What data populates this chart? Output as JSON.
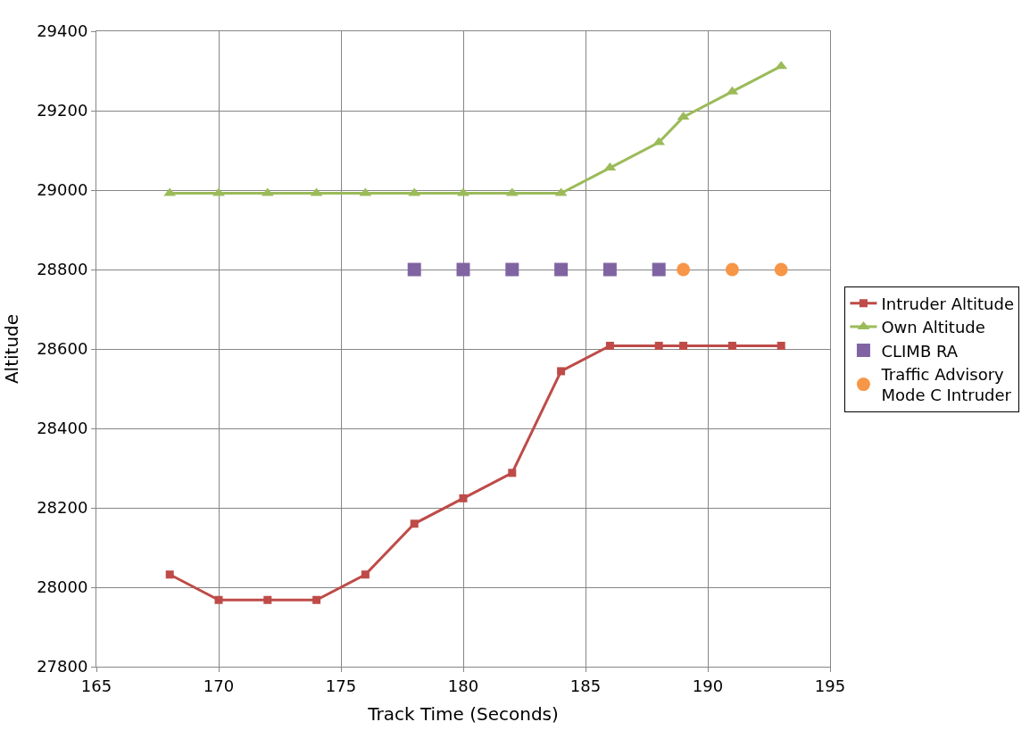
{
  "chart_data": {
    "type": "line",
    "xlabel": "Track Time (Seconds)",
    "ylabel": "Altitude",
    "xlim": [
      165,
      195
    ],
    "xticks": [
      165,
      170,
      175,
      180,
      185,
      190,
      195
    ],
    "ylim": [
      27800,
      29400
    ],
    "yticks": [
      27800,
      28000,
      28200,
      28400,
      28600,
      28800,
      29000,
      29200,
      29400
    ],
    "grid": true,
    "legend": "right",
    "series": [
      {
        "name": "Intruder Altitude",
        "marker": "square",
        "color": "#be4b48",
        "x": [
          168,
          170,
          172,
          174,
          176,
          178,
          180,
          182,
          184,
          186,
          188,
          189,
          191,
          193
        ],
        "values": [
          28032,
          27968,
          27968,
          27968,
          28032,
          28160,
          28224,
          28288,
          28544,
          28608,
          28608,
          28608,
          28608,
          28608
        ]
      },
      {
        "name": "Own Altitude",
        "marker": "triangle",
        "color": "#9bbb59",
        "x": [
          168,
          170,
          172,
          174,
          176,
          178,
          180,
          182,
          184,
          186,
          188,
          189,
          191,
          193
        ],
        "values": [
          28992,
          28992,
          28992,
          28992,
          28992,
          28992,
          28992,
          28992,
          28992,
          29056,
          29120,
          29184,
          29248,
          29312
        ]
      },
      {
        "name": "CLIMB RA",
        "type": "scatter",
        "marker": "square",
        "color": "#8064a2",
        "x": [
          178,
          180,
          182,
          184,
          186,
          188
        ],
        "values": [
          28800,
          28800,
          28800,
          28800,
          28800,
          28800
        ]
      },
      {
        "name": "Traffic Advisory\nMode C Intruder",
        "type": "scatter",
        "marker": "circle",
        "color": "#f79646",
        "x": [
          189,
          191,
          193
        ],
        "values": [
          28800,
          28800,
          28800
        ]
      }
    ]
  }
}
